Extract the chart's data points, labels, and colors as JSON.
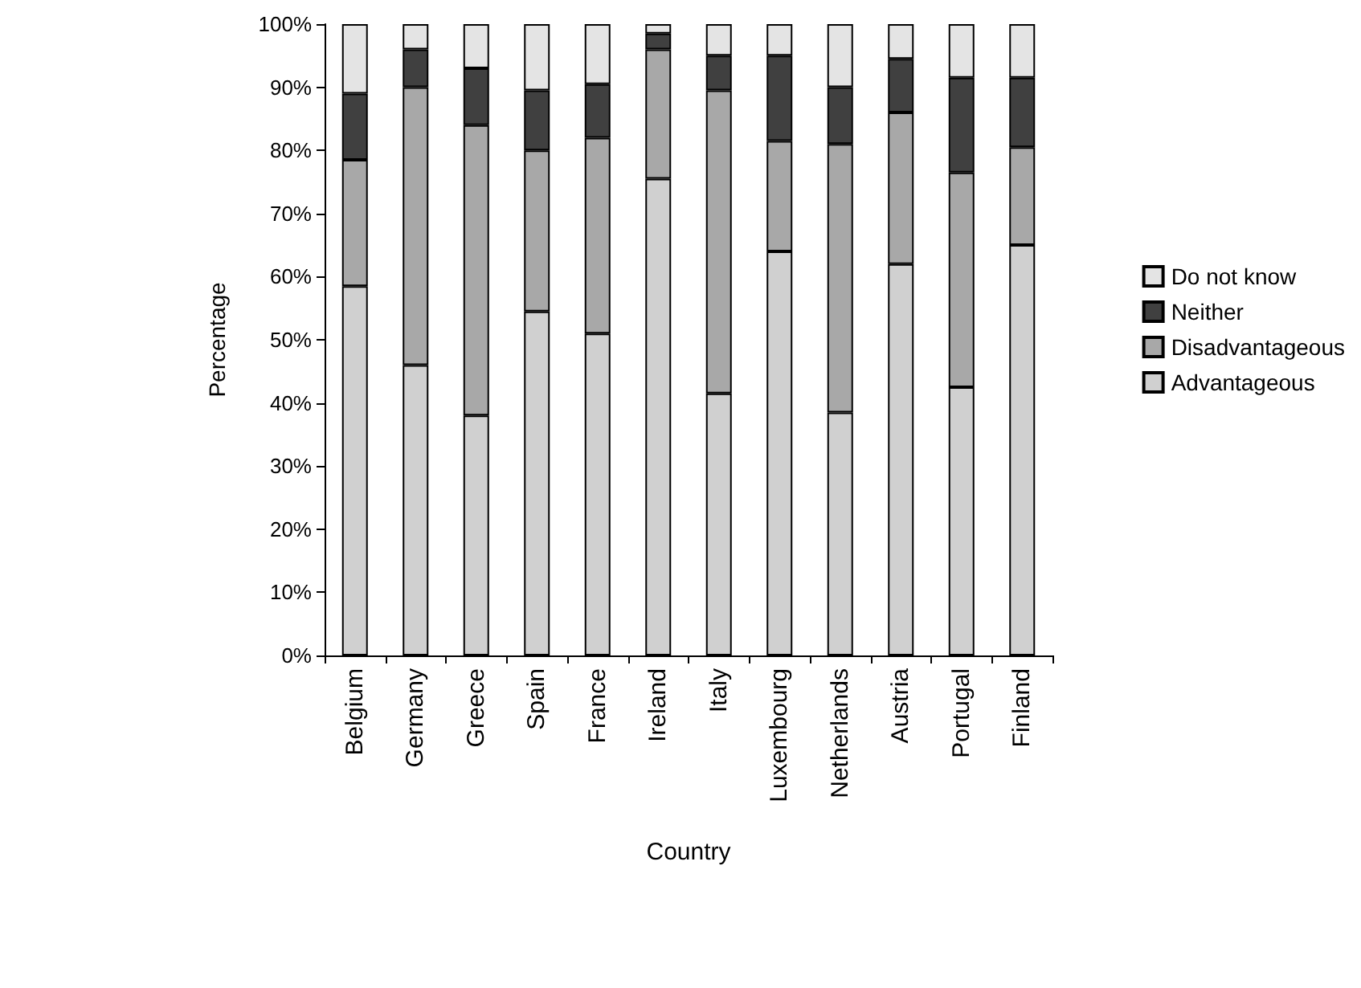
{
  "chart_data": {
    "type": "bar",
    "stacked": true,
    "xlabel": "Country",
    "ylabel": "Percentage",
    "categories": [
      "Belgium",
      "Germany",
      "Greece",
      "Spain",
      "France",
      "Ireland",
      "Italy",
      "Luxembourg",
      "Netherlands",
      "Austria",
      "Portugal",
      "Finland"
    ],
    "series": [
      {
        "name": "Advantageous",
        "color": "#d0d0d0",
        "values": [
          58.5,
          46,
          38,
          54.5,
          51,
          75.5,
          41.5,
          64,
          38.5,
          62,
          42.5,
          65
        ]
      },
      {
        "name": "Disadvantageous",
        "color": "#a8a8a8",
        "values": [
          20,
          44,
          46,
          25.5,
          31,
          20.5,
          48,
          17.5,
          42.5,
          24,
          34,
          15.5
        ]
      },
      {
        "name": "Neither",
        "color": "#404040",
        "values": [
          10.5,
          6,
          9,
          9.5,
          8.5,
          2.5,
          5.5,
          13.5,
          9,
          8.5,
          15,
          11
        ]
      },
      {
        "name": "Do not know",
        "color": "#e4e4e4",
        "values": [
          11,
          4,
          7,
          10.5,
          9.5,
          1.5,
          5,
          5,
          10,
          5.5,
          8.5,
          8.5
        ]
      }
    ],
    "ylim": [
      0,
      100
    ],
    "yticks": [
      {
        "value": 0,
        "label": "0%"
      },
      {
        "value": 10,
        "label": "10%"
      },
      {
        "value": 20,
        "label": "20%"
      },
      {
        "value": 30,
        "label": "30%"
      },
      {
        "value": 40,
        "label": "40%"
      },
      {
        "value": 50,
        "label": "50%"
      },
      {
        "value": 60,
        "label": "60%"
      },
      {
        "value": 70,
        "label": "70%"
      },
      {
        "value": 80,
        "label": "80%"
      },
      {
        "value": 90,
        "label": "90%"
      },
      {
        "value": 100,
        "label": "100%"
      }
    ],
    "grid": false,
    "legend": "right"
  }
}
